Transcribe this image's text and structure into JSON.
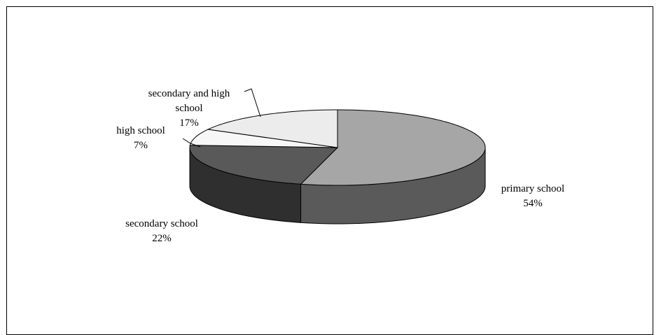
{
  "chart_data": {
    "type": "pie",
    "style": "3d",
    "title": "",
    "categories": [
      "primary school",
      "secondary school",
      "high school",
      "secondary and high school"
    ],
    "values": [
      54,
      22,
      7,
      17
    ],
    "labels": [
      {
        "name": "primary school",
        "pct": "54%"
      },
      {
        "name": "secondary school",
        "pct": "22%"
      },
      {
        "name": "high school",
        "pct": "7%"
      },
      {
        "name": "secondary and high school",
        "pct": "17%"
      }
    ],
    "colors": {
      "top": [
        "#a6a6a6",
        "#595959",
        "#f7f7f7",
        "#ececec"
      ],
      "side": [
        "#5a5a5a",
        "#2f2f2f",
        "#bfbfbf",
        "#b5b5b5"
      ],
      "stroke": "#000000"
    },
    "legend": "none"
  }
}
